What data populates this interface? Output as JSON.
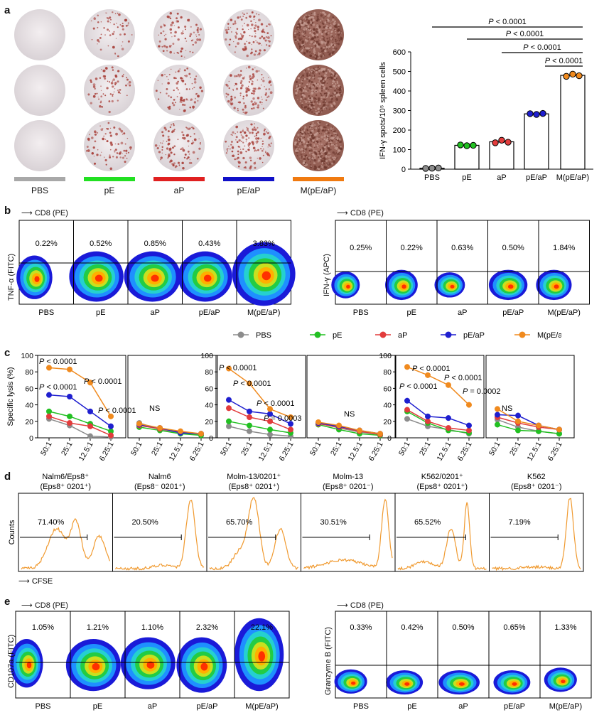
{
  "panels": {
    "a": "a",
    "b": "b",
    "c": "c",
    "d": "d",
    "e": "e"
  },
  "colors": {
    "PBS": "#8c8c8c",
    "pE": "#22c022",
    "aP": "#e23c3c",
    "pE/aP": "#1f1fcf",
    "M(pE/aP)": "#f08a1e"
  },
  "groups": [
    "PBS",
    "pE",
    "aP",
    "pE/aP",
    "M(pE/aP)"
  ],
  "panel_a": {
    "wells_caption": [
      "PBS",
      "pE",
      "aP",
      "pE/aP",
      "M(pE/aP)"
    ]
  },
  "panel_b": {
    "left": {
      "x_axis": "CD8 (PE)",
      "y_axis": "TNF-α (FITC)",
      "percentages": [
        "0.22%",
        "0.52%",
        "0.85%",
        "0.43%",
        "3.83%"
      ],
      "labels": [
        "PBS",
        "pE",
        "aP",
        "pE/aP",
        "M(pE/aP)"
      ]
    },
    "right": {
      "x_axis": "CD8 (PE)",
      "y_axis": "IFN-γ (APC)",
      "percentages": [
        "0.25%",
        "0.22%",
        "0.63%",
        "0.50%",
        "1.84%"
      ],
      "labels": [
        "PBS",
        "pE",
        "aP",
        "pE/aP",
        "M(pE/aP)"
      ]
    },
    "legend": [
      "PBS",
      "pE",
      "aP",
      "pE/aP",
      "M(pE/aP"
    ]
  },
  "panel_c": {
    "y_axis": "Specific lysis (%)",
    "x_ticks": [
      "50:1",
      "25:1",
      "12.5:1",
      "6.25:1"
    ],
    "annotations": {
      "g1": [
        "P < 0.0001",
        "P < 0.0001",
        "P < 0.0001",
        "P < 0.0001"
      ],
      "g3": [
        "P < 0.0001",
        "P < 0.0001",
        "P < 0.0001",
        "P = 0.0003"
      ],
      "g5": [
        "P < 0.0001",
        "P < 0.0001",
        "P < 0.0001",
        "P = 0.0002"
      ],
      "ns": "NS"
    }
  },
  "panel_d": {
    "titles": [
      [
        "Nalm6/Eps8⁺",
        "(Eps8⁺ 0201⁺)"
      ],
      [
        "Nalm6",
        "(Eps8⁻ 0201⁺)"
      ],
      [
        "Molm-13/0201⁺",
        "(Eps8⁺ 0201⁺)"
      ],
      [
        "Molm-13",
        "(Eps8⁺ 0201⁻)"
      ],
      [
        "K562/0201⁺",
        "(Eps8⁺ 0201⁺)"
      ],
      [
        "K562",
        "(Eps8⁺ 0201⁻)"
      ]
    ],
    "percentages": [
      "71.40%",
      "20.50%",
      "65.70%",
      "30.51%",
      "65.52%",
      "7.19%"
    ],
    "y_axis": "Counts",
    "x_axis": "CFSE"
  },
  "panel_e": {
    "left": {
      "x_axis": "CD8 (PE)",
      "y_axis": "CD107a (FITC)",
      "percentages": [
        "1.05%",
        "1.21%",
        "1.10%",
        "2.32%",
        "22.1%"
      ],
      "labels": [
        "PBS",
        "pE",
        "aP",
        "pE/aP",
        "M(pE/aP)"
      ]
    },
    "right": {
      "x_axis": "CD8 (PE)",
      "y_axis": "Granzyme B (FITC)",
      "percentages": [
        "0.33%",
        "0.42%",
        "0.50%",
        "0.65%",
        "1.33%"
      ],
      "labels": [
        "PBS",
        "pE",
        "aP",
        "pE/aP",
        "M(pE/aP)"
      ]
    }
  },
  "chart_data": [
    {
      "type": "bar",
      "title": "",
      "categories": [
        "PBS",
        "pE",
        "aP",
        "pE/aP",
        "M(pE/aP)"
      ],
      "values": [
        5,
        122,
        140,
        283,
        480
      ],
      "points": [
        [
          4,
          5,
          6
        ],
        [
          124,
          120,
          122
        ],
        [
          135,
          148,
          138
        ],
        [
          284,
          280,
          285
        ],
        [
          475,
          486,
          478
        ]
      ],
      "ylabel": "IFN-γ spots/10⁵ spleen cells",
      "ylim": [
        0,
        600
      ],
      "yticks": [
        "0",
        "100",
        "200",
        "300",
        "400",
        "500",
        "600"
      ],
      "significance": [
        "P < 0.0001",
        "P < 0.0001",
        "P < 0.0001",
        "P < 0.0001"
      ]
    },
    {
      "type": "line",
      "title": "Specific lysis",
      "x": [
        "50:1",
        "25:1",
        "12.5:1",
        "6.25:1"
      ],
      "ylabel": "Specific lysis (%)",
      "ylim": [
        0,
        100
      ],
      "yticks": [
        "0",
        "20",
        "40",
        "60",
        "80",
        "100"
      ],
      "groups": [
        {
          "series": [
            {
              "name": "PBS",
              "values": [
                23,
                15,
                2,
                1
              ]
            },
            {
              "name": "pE",
              "values": [
                32,
                26,
                17,
                8
              ]
            },
            {
              "name": "aP",
              "values": [
                26,
                18,
                14,
                3
              ]
            },
            {
              "name": "pE/aP",
              "values": [
                52,
                50,
                32,
                14
              ]
            },
            {
              "name": "M(pE/aP)",
              "values": [
                85,
                83,
                67,
                26
              ]
            }
          ]
        },
        {
          "series": [
            {
              "name": "PBS",
              "values": [
                18,
                10,
                6,
                4
              ]
            },
            {
              "name": "pE",
              "values": [
                13,
                9,
                5,
                3
              ]
            },
            {
              "name": "aP",
              "values": [
                15,
                11,
                7,
                5
              ]
            },
            {
              "name": "pE/aP",
              "values": [
                16,
                12,
                6,
                5
              ]
            },
            {
              "name": "M(pE/aP)",
              "values": [
                17,
                12,
                8,
                5
              ]
            }
          ]
        },
        {
          "series": [
            {
              "name": "PBS",
              "values": [
                14,
                8,
                4,
                2
              ]
            },
            {
              "name": "pE",
              "values": [
                20,
                15,
                10,
                6
              ]
            },
            {
              "name": "aP",
              "values": [
                36,
                25,
                20,
                10
              ]
            },
            {
              "name": "pE/aP",
              "values": [
                46,
                32,
                29,
                17
              ]
            },
            {
              "name": "M(pE/aP)",
              "values": [
                84,
                66,
                35,
                25
              ]
            }
          ]
        },
        {
          "series": [
            {
              "name": "PBS",
              "values": [
                18,
                12,
                7,
                4
              ]
            },
            {
              "name": "pE",
              "values": [
                16,
                10,
                5,
                3
              ]
            },
            {
              "name": "aP",
              "values": [
                17,
                13,
                8,
                4
              ]
            },
            {
              "name": "pE/aP",
              "values": [
                18,
                14,
                9,
                5
              ]
            },
            {
              "name": "M(pE/aP)",
              "values": [
                19,
                15,
                9,
                5
              ]
            }
          ]
        },
        {
          "series": [
            {
              "name": "PBS",
              "values": [
                23,
                14,
                10,
                5
              ]
            },
            {
              "name": "pE",
              "values": [
                32,
                18,
                9,
                6
              ]
            },
            {
              "name": "aP",
              "values": [
                34,
                20,
                12,
                9
              ]
            },
            {
              "name": "pE/aP",
              "values": [
                45,
                26,
                24,
                15
              ]
            },
            {
              "name": "M(pE/aP)",
              "values": [
                86,
                76,
                64,
                40
              ]
            }
          ]
        },
        {
          "series": [
            {
              "name": "PBS",
              "values": [
                22,
                13,
                8,
                5
              ]
            },
            {
              "name": "pE",
              "values": [
                16,
                9,
                8,
                5
              ]
            },
            {
              "name": "aP",
              "values": [
                25,
                18,
                13,
                10
              ]
            },
            {
              "name": "pE/aP",
              "values": [
                28,
                27,
                15,
                10
              ]
            },
            {
              "name": "M(pE/aP)",
              "values": [
                35,
                20,
                15,
                10
              ]
            }
          ]
        }
      ]
    }
  ]
}
